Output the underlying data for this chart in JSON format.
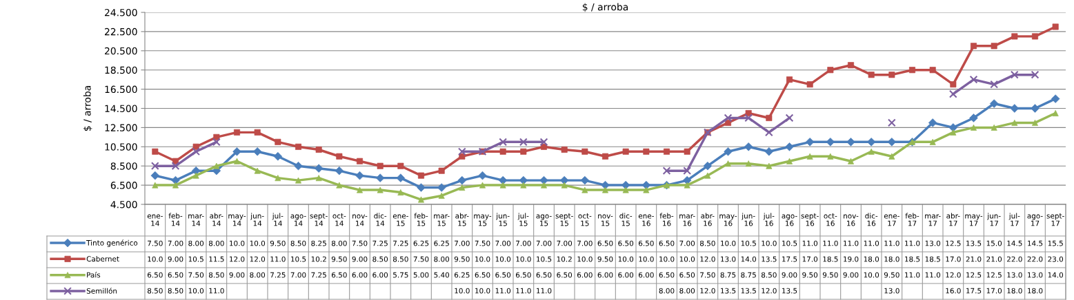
{
  "chart_data": {
    "type": "line",
    "title": "$ / arroba",
    "ylabel": "$ / arroba",
    "categories": [
      "ene-14",
      "feb-14",
      "mar-14",
      "abr-14",
      "may-14",
      "jun-14",
      "jul-14",
      "ago-14",
      "sept-14",
      "oct-14",
      "nov-14",
      "dic-14",
      "ene-15",
      "feb-15",
      "mar-15",
      "abr-15",
      "may-15",
      "jun-15",
      "jul-15",
      "ago-15",
      "sept-15",
      "oct-15",
      "nov-15",
      "dic-15",
      "ene-16",
      "feb-16",
      "mar-16",
      "abr-16",
      "may-16",
      "jun-16",
      "jul-16",
      "ago-16",
      "sept-16",
      "oct-16",
      "nov-16",
      "dic-16",
      "ene-17",
      "feb-17",
      "mar-17",
      "abr-17",
      "may-17",
      "jun-17",
      "jul-17",
      "ago-17",
      "sept-17"
    ],
    "series": [
      {
        "name": "Tinto genérico",
        "color": "#4a7ebb",
        "marker": "diamond",
        "values": [
          7.5,
          7.0,
          8.0,
          8.0,
          10.0,
          10.0,
          9.5,
          8.5,
          8.25,
          8.0,
          7.5,
          7.25,
          7.25,
          6.25,
          6.25,
          7.0,
          7.5,
          7.0,
          7.0,
          7.0,
          7.0,
          7.0,
          6.5,
          6.5,
          6.5,
          6.5,
          7.0,
          8.5,
          10.0,
          10.5,
          10.0,
          10.5,
          11.0,
          11.0,
          11.0,
          11.0,
          11.0,
          11.0,
          13.0,
          12.5,
          13.5,
          15.0,
          14.5,
          14.5,
          15.5
        ],
        "value_labels": [
          "7.50",
          "7.00",
          "8.00",
          "8.00",
          "10.0",
          "10.0",
          "9.50",
          "8.50",
          "8.25",
          "8.00",
          "7.50",
          "7.25",
          "7.25",
          "6.25",
          "6.25",
          "7.00",
          "7.50",
          "7.00",
          "7.00",
          "7.00",
          "7.00",
          "7.00",
          "6.50",
          "6.50",
          "6.50",
          "6.50",
          "7.00",
          "8.50",
          "10.0",
          "10.5",
          "10.0",
          "10.5",
          "11.0",
          "11.0",
          "11.0",
          "11.0",
          "11.0",
          "11.0",
          "13.0",
          "12.5",
          "13.5",
          "15.0",
          "14.5",
          "14.5",
          "15.5"
        ]
      },
      {
        "name": "Cabernet",
        "color": "#be4b48",
        "marker": "square",
        "values": [
          10.0,
          9.0,
          10.5,
          11.5,
          12.0,
          12.0,
          11.0,
          10.5,
          10.2,
          9.5,
          9.0,
          8.5,
          8.5,
          7.5,
          8.0,
          9.5,
          10.0,
          10.0,
          10.0,
          10.5,
          10.2,
          10.0,
          9.5,
          10.0,
          10.0,
          10.0,
          10.0,
          12.0,
          13.0,
          14.0,
          13.5,
          17.5,
          17.0,
          18.5,
          19.0,
          18.0,
          18.0,
          18.5,
          18.5,
          17.0,
          21.0,
          21.0,
          22.0,
          22.0,
          23.0
        ],
        "value_labels": [
          "10.0",
          "9.00",
          "10.5",
          "11.5",
          "12.0",
          "12.0",
          "11.0",
          "10.5",
          "10.2",
          "9.50",
          "9.00",
          "8.50",
          "8.50",
          "7.50",
          "8.00",
          "9.50",
          "10.0",
          "10.0",
          "10.0",
          "10.5",
          "10.2",
          "10.0",
          "9.50",
          "10.0",
          "10.0",
          "10.0",
          "10.0",
          "12.0",
          "13.0",
          "14.0",
          "13.5",
          "17.5",
          "17.0",
          "18.5",
          "19.0",
          "18.0",
          "18.0",
          "18.5",
          "18.5",
          "17.0",
          "21.0",
          "21.0",
          "22.0",
          "22.0",
          "23.0"
        ]
      },
      {
        "name": "País",
        "color": "#98b954",
        "marker": "triangle",
        "values": [
          6.5,
          6.5,
          7.5,
          8.5,
          9.0,
          8.0,
          7.25,
          7.0,
          7.25,
          6.5,
          6.0,
          6.0,
          5.75,
          5.0,
          5.4,
          6.25,
          6.5,
          6.5,
          6.5,
          6.5,
          6.5,
          6.0,
          6.0,
          6.0,
          6.0,
          6.5,
          6.5,
          7.5,
          8.75,
          8.75,
          8.5,
          9.0,
          9.5,
          9.5,
          9.0,
          10.0,
          9.5,
          11.0,
          11.0,
          12.0,
          12.5,
          12.5,
          13.0,
          13.0,
          14.0
        ],
        "value_labels": [
          "6.50",
          "6.50",
          "7.50",
          "8.50",
          "9.00",
          "8.00",
          "7.25",
          "7.00",
          "7.25",
          "6.50",
          "6.00",
          "6.00",
          "5.75",
          "5.00",
          "5.40",
          "6.25",
          "6.50",
          "6.50",
          "6.50",
          "6.50",
          "6.50",
          "6.00",
          "6.00",
          "6.00",
          "6.00",
          "6.50",
          "6.50",
          "7.50",
          "8.75",
          "8.75",
          "8.50",
          "9.00",
          "9.50",
          "9.50",
          "9.00",
          "10.0",
          "9.50",
          "11.0",
          "11.0",
          "12.0",
          "12.5",
          "12.5",
          "13.0",
          "13.0",
          "14.0"
        ]
      },
      {
        "name": "Semillón",
        "color": "#7d60a0",
        "marker": "cross",
        "values": [
          8.5,
          8.5,
          10.0,
          11.0,
          null,
          null,
          null,
          null,
          null,
          null,
          null,
          null,
          null,
          null,
          null,
          10.0,
          10.0,
          11.0,
          11.0,
          11.0,
          null,
          null,
          null,
          null,
          null,
          8.0,
          8.0,
          12.0,
          13.5,
          13.5,
          12.0,
          13.5,
          null,
          null,
          null,
          null,
          13.0,
          null,
          null,
          16.0,
          17.5,
          17.0,
          18.0,
          18.0,
          null
        ],
        "value_labels": [
          "8.50",
          "8.50",
          "10.0",
          "11.0",
          null,
          null,
          null,
          null,
          null,
          null,
          null,
          null,
          null,
          null,
          null,
          "10.0",
          "10.0",
          "11.0",
          "11.0",
          "11.0",
          null,
          null,
          null,
          null,
          null,
          "8.00",
          "8.00",
          "12.0",
          "13.5",
          "13.5",
          "12.0",
          "13.5",
          null,
          null,
          null,
          null,
          "13.0",
          null,
          null,
          "16.0",
          "17.5",
          "17.0",
          "18.0",
          "18.0",
          null
        ]
      }
    ],
    "ylim": [
      4.5,
      24.5
    ],
    "yticks": [
      {
        "value": 4.5,
        "label": "4.500"
      },
      {
        "value": 6.5,
        "label": "6.500"
      },
      {
        "value": 8.5,
        "label": "8.500"
      },
      {
        "value": 10.5,
        "label": "10.500"
      },
      {
        "value": 12.5,
        "label": "12.500"
      },
      {
        "value": 14.5,
        "label": "14.500"
      },
      {
        "value": 16.5,
        "label": "16.500"
      },
      {
        "value": 18.5,
        "label": "18.500"
      },
      {
        "value": 20.5,
        "label": "20.500"
      },
      {
        "value": 22.5,
        "label": "22.500"
      },
      {
        "value": 24.5,
        "label": "24.500"
      }
    ],
    "grid": "y",
    "line_style": "solid",
    "legend": "bottom left"
  }
}
